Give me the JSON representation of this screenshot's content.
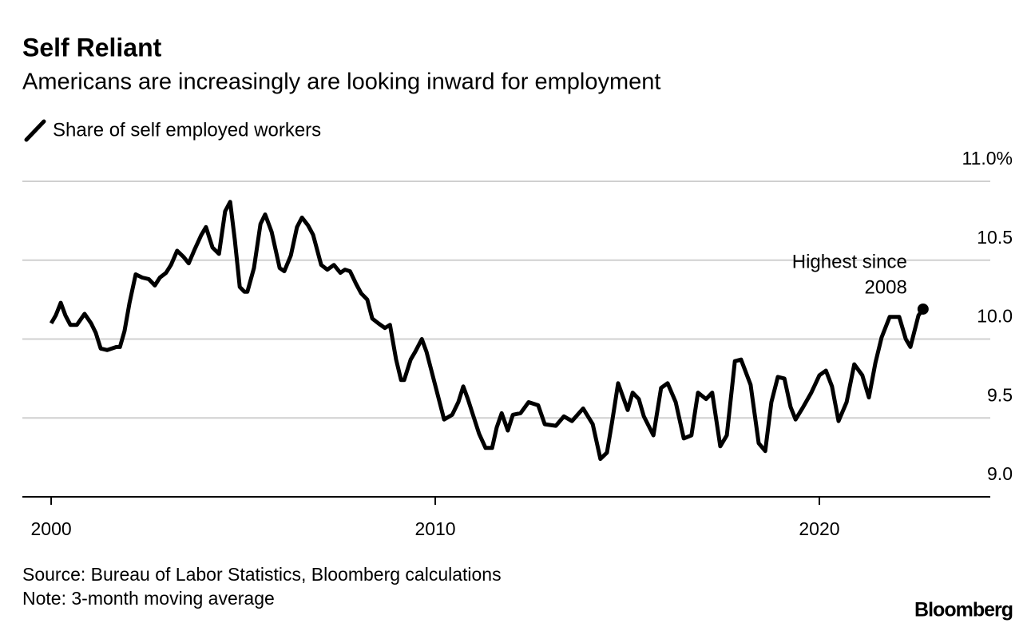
{
  "chart_data": {
    "type": "line",
    "title": "Self Reliant",
    "subtitle": "Americans are increasingly are looking inward for employment",
    "source": "Source: Bureau of Labor Statistics, Bloomberg calculations",
    "note": "Note: 3-month moving average",
    "brand": "Bloomberg",
    "annotation": [
      "Highest since",
      "2008"
    ],
    "x": [
      2000.0,
      2000.12,
      2000.25,
      2000.37,
      2000.5,
      2000.67,
      2000.87,
      2001.04,
      2001.16,
      2001.29,
      2001.46,
      2001.7,
      2001.79,
      2001.91,
      2002.04,
      2002.2,
      2002.37,
      2002.54,
      2002.7,
      2002.83,
      2002.99,
      2003.12,
      2003.28,
      2003.45,
      2003.58,
      2003.74,
      2003.91,
      2004.03,
      2004.2,
      2004.37,
      2004.53,
      2004.66,
      2004.78,
      2004.91,
      2005.03,
      2005.11,
      2005.28,
      2005.45,
      2005.57,
      2005.74,
      2005.95,
      2006.07,
      2006.24,
      2006.4,
      2006.53,
      2006.69,
      2006.82,
      2007.03,
      2007.19,
      2007.36,
      2007.53,
      2007.65,
      2007.78,
      2007.94,
      2008.07,
      2008.23,
      2008.36,
      2008.52,
      2008.69,
      2008.82,
      2008.98,
      2009.11,
      2009.19,
      2009.36,
      2009.48,
      2009.65,
      2009.77,
      2009.9,
      2010.06,
      2010.23,
      2010.44,
      2010.6,
      2010.73,
      2010.85,
      2010.98,
      2011.14,
      2011.31,
      2011.48,
      2011.6,
      2011.73,
      2011.89,
      2012.02,
      2012.22,
      2012.43,
      2012.68,
      2012.85,
      2013.14,
      2013.35,
      2013.56,
      2013.85,
      2014.1,
      2014.3,
      2014.47,
      2014.6,
      2014.76,
      2015.01,
      2015.14,
      2015.3,
      2015.43,
      2015.68,
      2015.88,
      2016.05,
      2016.26,
      2016.47,
      2016.67,
      2016.84,
      2017.05,
      2017.21,
      2017.42,
      2017.59,
      2017.8,
      2017.96,
      2018.21,
      2018.42,
      2018.59,
      2018.75,
      2018.92,
      2019.09,
      2019.25,
      2019.38,
      2019.58,
      2019.79,
      2020.0,
      2020.17,
      2020.33,
      2020.5,
      2020.71,
      2020.91,
      2021.12,
      2021.29,
      2021.46,
      2021.62,
      2021.83,
      2022.08,
      2022.25,
      2022.37,
      2022.58,
      2022.7
    ],
    "series": [
      {
        "name": "Share of self employed workers",
        "color": "#000000",
        "values": [
          10.1,
          10.15,
          10.23,
          10.15,
          10.09,
          10.09,
          10.16,
          10.1,
          10.04,
          9.94,
          9.93,
          9.95,
          9.95,
          10.05,
          10.23,
          10.41,
          10.39,
          10.38,
          10.34,
          10.39,
          10.42,
          10.47,
          10.56,
          10.52,
          10.48,
          10.57,
          10.66,
          10.71,
          10.58,
          10.54,
          10.81,
          10.87,
          10.63,
          10.33,
          10.3,
          10.3,
          10.45,
          10.73,
          10.79,
          10.68,
          10.45,
          10.43,
          10.53,
          10.71,
          10.77,
          10.72,
          10.66,
          10.47,
          10.44,
          10.47,
          10.42,
          10.44,
          10.43,
          10.35,
          10.29,
          10.25,
          10.13,
          10.1,
          10.07,
          10.09,
          9.87,
          9.74,
          9.74,
          9.87,
          9.92,
          10.0,
          9.92,
          9.8,
          9.65,
          9.49,
          9.52,
          9.6,
          9.7,
          9.62,
          9.52,
          9.4,
          9.31,
          9.31,
          9.44,
          9.53,
          9.42,
          9.52,
          9.53,
          9.6,
          9.58,
          9.46,
          9.45,
          9.51,
          9.48,
          9.56,
          9.46,
          9.24,
          9.28,
          9.47,
          9.72,
          9.55,
          9.66,
          9.62,
          9.51,
          9.39,
          9.69,
          9.72,
          9.6,
          9.37,
          9.39,
          9.66,
          9.62,
          9.66,
          9.32,
          9.39,
          9.86,
          9.87,
          9.71,
          9.34,
          9.29,
          9.6,
          9.76,
          9.75,
          9.57,
          9.49,
          9.57,
          9.66,
          9.77,
          9.8,
          9.7,
          9.48,
          9.6,
          9.84,
          9.77,
          9.63,
          9.85,
          10.01,
          10.14,
          10.14,
          10.0,
          9.95,
          10.15,
          10.19
        ]
      }
    ],
    "xlim": [
      1999.25,
      2024.45
    ],
    "xticks": [
      2000,
      2010,
      2020
    ],
    "ylim": [
      9.0,
      11.0
    ],
    "yticks": [
      {
        "value": 9.0,
        "label": "9.0"
      },
      9.5,
      {
        "value": 10.0,
        "label": "10.0"
      },
      10.5,
      {
        "value": 11.0,
        "label": "11.0%"
      }
    ],
    "grid": true
  }
}
